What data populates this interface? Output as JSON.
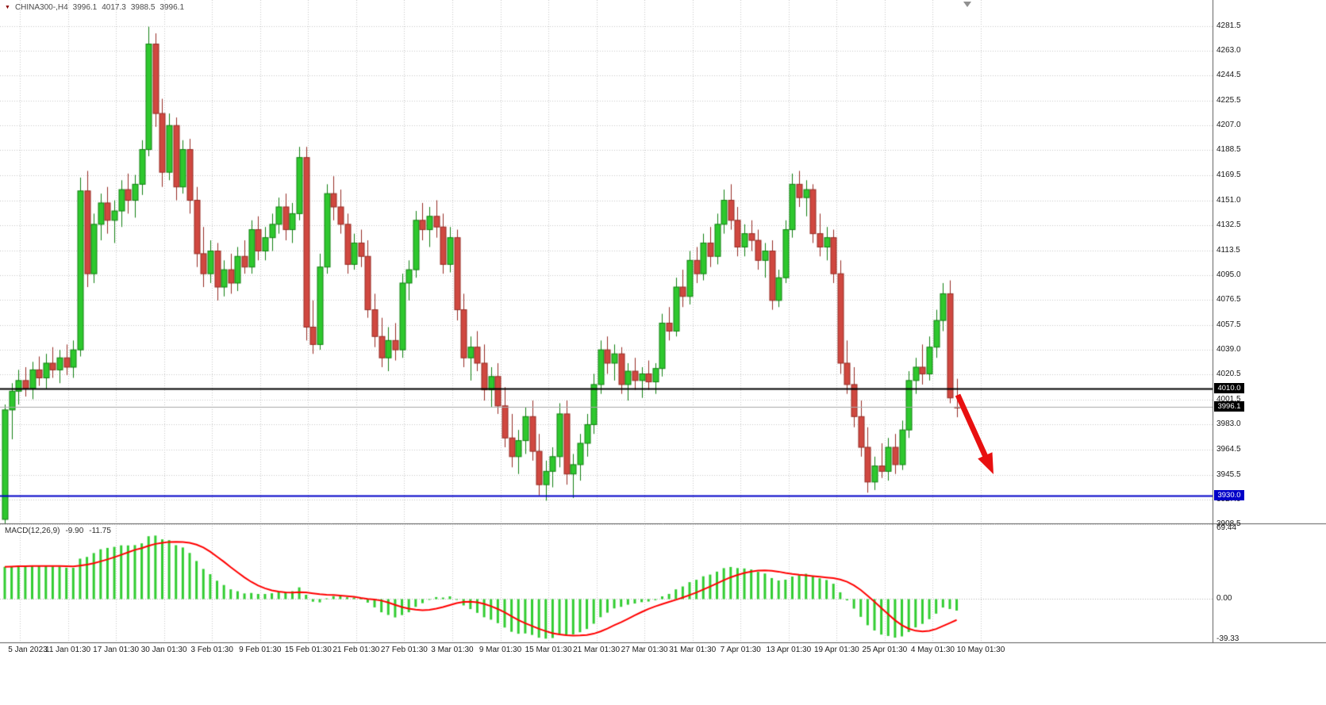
{
  "window": {
    "symbol_period": "CHINA300-,H4",
    "open": "3996.1",
    "high": "4017.3",
    "low": "3988.5",
    "close": "3996.1"
  },
  "colors": {
    "background": "#ffffff",
    "grid": "#c9c9c9",
    "bull_fill": "#2ec82e",
    "bull_border": "#118011",
    "bear_fill": "#d04840",
    "bear_border": "#962c24",
    "resistance_line": "#000000",
    "support_line": "#0000c8",
    "last_price_line": "#a8a8a8",
    "last_price_badge": "#000000",
    "macd_histogram": "#32cd32",
    "macd_signal": "#ff0000",
    "arrow": "#e81010"
  },
  "chart_data": {
    "type": "candlestick",
    "symbol": "CHINA300-",
    "timeframe": "H4",
    "grid": true,
    "y_range": {
      "top": 4301,
      "bottom": 3909
    },
    "y_ticks": [
      "4281.5",
      "4263.0",
      "4244.5",
      "4225.5",
      "4207.0",
      "4188.5",
      "4169.5",
      "4151.0",
      "4132.5",
      "4113.5",
      "4095.0",
      "4076.5",
      "4057.5",
      "4039.0",
      "4020.5",
      "4001.5",
      "3983.0",
      "3964.5",
      "3945.5",
      "3927.0",
      "3908.5"
    ],
    "x_labels": [
      "5 Jan 2023",
      "11 Jan 01:30",
      "17 Jan 01:30",
      "30 Jan 01:30",
      "3 Feb 01:30",
      "9 Feb 01:30",
      "15 Feb 01:30",
      "21 Feb 01:30",
      "27 Feb 01:30",
      "3 Mar 01:30",
      "9 Mar 01:30",
      "15 Mar 01:30",
      "21 Mar 01:30",
      "27 Mar 01:30",
      "31 Mar 01:30",
      "7 Apr 01:30",
      "13 Apr 01:30",
      "19 Apr 01:30",
      "25 Apr 01:30",
      "4 May 01:30",
      "10 May 01:30"
    ],
    "hlines": [
      {
        "price": 4010.0,
        "label": "4010.0",
        "color": "#000000",
        "width": 2
      },
      {
        "price": 3930.0,
        "label": "3930.0",
        "color": "#0000c8",
        "width": 2
      }
    ],
    "last_price": {
      "value": 3996.1,
      "label": "3996.1"
    },
    "annotations": [
      {
        "type": "arrow",
        "direction": "down-right",
        "color": "#e81010"
      }
    ],
    "ohlc": [
      [
        3912,
        3998,
        3908,
        3994
      ],
      [
        3994,
        4014,
        3972,
        4008
      ],
      [
        4008,
        4024,
        3998,
        4016
      ],
      [
        4016,
        4026,
        4004,
        4010
      ],
      [
        4010,
        4030,
        4002,
        4024
      ],
      [
        4024,
        4034,
        4012,
        4018
      ],
      [
        4018,
        4036,
        4010,
        4029
      ],
      [
        4029,
        4041,
        4018,
        4024
      ],
      [
        4024,
        4039,
        4014,
        4033
      ],
      [
        4033,
        4043,
        4020,
        4026
      ],
      [
        4026,
        4046,
        4018,
        4039
      ],
      [
        4039,
        4168,
        4034,
        4158
      ],
      [
        4158,
        4173,
        4086,
        4096
      ],
      [
        4096,
        4141,
        4089,
        4133
      ],
      [
        4133,
        4156,
        4121,
        4149
      ],
      [
        4149,
        4161,
        4126,
        4136
      ],
      [
        4136,
        4151,
        4119,
        4143
      ],
      [
        4143,
        4166,
        4131,
        4159
      ],
      [
        4159,
        4171,
        4141,
        4151
      ],
      [
        4151,
        4170,
        4138,
        4163
      ],
      [
        4163,
        4196,
        4155,
        4189
      ],
      [
        4189,
        4281,
        4184,
        4268
      ],
      [
        4268,
        4276,
        4206,
        4216
      ],
      [
        4216,
        4227,
        4161,
        4172
      ],
      [
        4172,
        4216,
        4166,
        4207
      ],
      [
        4207,
        4213,
        4151,
        4161
      ],
      [
        4161,
        4196,
        4156,
        4189
      ],
      [
        4189,
        4197,
        4141,
        4151
      ],
      [
        4151,
        4161,
        4101,
        4111
      ],
      [
        4111,
        4131,
        4086,
        4096
      ],
      [
        4096,
        4121,
        4089,
        4113
      ],
      [
        4113,
        4119,
        4076,
        4086
      ],
      [
        4086,
        4106,
        4079,
        4099
      ],
      [
        4099,
        4111,
        4081,
        4089
      ],
      [
        4089,
        4116,
        4083,
        4109
      ],
      [
        4109,
        4121,
        4096,
        4101
      ],
      [
        4101,
        4136,
        4096,
        4129
      ],
      [
        4129,
        4139,
        4106,
        4113
      ],
      [
        4113,
        4131,
        4106,
        4123
      ],
      [
        4123,
        4141,
        4113,
        4133
      ],
      [
        4133,
        4153,
        4126,
        4146
      ],
      [
        4146,
        4156,
        4121,
        4129
      ],
      [
        4129,
        4149,
        4119,
        4141
      ],
      [
        4141,
        4191,
        4136,
        4183
      ],
      [
        4183,
        4191,
        4046,
        4056
      ],
      [
        4056,
        4076,
        4036,
        4043
      ],
      [
        4043,
        4111,
        4039,
        4101
      ],
      [
        4101,
        4163,
        4096,
        4156
      ],
      [
        4156,
        4169,
        4136,
        4146
      ],
      [
        4146,
        4159,
        4126,
        4133
      ],
      [
        4133,
        4141,
        4096,
        4103
      ],
      [
        4103,
        4126,
        4099,
        4119
      ],
      [
        4119,
        4129,
        4101,
        4109
      ],
      [
        4109,
        4121,
        4063,
        4069
      ],
      [
        4069,
        4081,
        4041,
        4049
      ],
      [
        4049,
        4063,
        4026,
        4033
      ],
      [
        4033,
        4056,
        4023,
        4046
      ],
      [
        4046,
        4059,
        4031,
        4039
      ],
      [
        4039,
        4096,
        4033,
        4089
      ],
      [
        4089,
        4106,
        4076,
        4099
      ],
      [
        4099,
        4143,
        4093,
        4136
      ],
      [
        4136,
        4149,
        4121,
        4129
      ],
      [
        4129,
        4146,
        4116,
        4139
      ],
      [
        4139,
        4151,
        4123,
        4131
      ],
      [
        4131,
        4141,
        4096,
        4103
      ],
      [
        4103,
        4131,
        4097,
        4123
      ],
      [
        4123,
        4129,
        4061,
        4069
      ],
      [
        4069,
        4081,
        4026,
        4033
      ],
      [
        4033,
        4049,
        4016,
        4041
      ],
      [
        4041,
        4053,
        4023,
        4029
      ],
      [
        4029,
        4043,
        4001,
        4009
      ],
      [
        4009,
        4026,
        3996,
        4019
      ],
      [
        4019,
        4029,
        3991,
        3997
      ],
      [
        3997,
        4011,
        3966,
        3973
      ],
      [
        3973,
        3991,
        3951,
        3959
      ],
      [
        3959,
        3979,
        3946,
        3971
      ],
      [
        3971,
        3996,
        3961,
        3989
      ],
      [
        3989,
        4001,
        3956,
        3963
      ],
      [
        3963,
        3976,
        3930,
        3938
      ],
      [
        3938,
        3956,
        3926,
        3948
      ],
      [
        3948,
        3966,
        3936,
        3959
      ],
      [
        3959,
        3999,
        3951,
        3991
      ],
      [
        3991,
        4001,
        3938,
        3946
      ],
      [
        3946,
        3961,
        3928,
        3953
      ],
      [
        3953,
        3976,
        3941,
        3969
      ],
      [
        3969,
        3991,
        3959,
        3983
      ],
      [
        3983,
        4021,
        3976,
        4013
      ],
      [
        4013,
        4046,
        4006,
        4039
      ],
      [
        4039,
        4049,
        4021,
        4029
      ],
      [
        4029,
        4043,
        4016,
        4036
      ],
      [
        4036,
        4041,
        4006,
        4013
      ],
      [
        4013,
        4029,
        4001,
        4023
      ],
      [
        4023,
        4033,
        4009,
        4016
      ],
      [
        4016,
        4026,
        4003,
        4021
      ],
      [
        4021,
        4031,
        4009,
        4015
      ],
      [
        4015,
        4029,
        4006,
        4025
      ],
      [
        4025,
        4066,
        4019,
        4059
      ],
      [
        4059,
        4071,
        4046,
        4053
      ],
      [
        4053,
        4093,
        4049,
        4086
      ],
      [
        4086,
        4099,
        4071,
        4079
      ],
      [
        4079,
        4113,
        4073,
        4106
      ],
      [
        4106,
        4116,
        4089,
        4096
      ],
      [
        4096,
        4126,
        4091,
        4119
      ],
      [
        4119,
        4131,
        4101,
        4109
      ],
      [
        4109,
        4141,
        4103,
        4133
      ],
      [
        4133,
        4159,
        4126,
        4151
      ],
      [
        4151,
        4163,
        4129,
        4136
      ],
      [
        4136,
        4146,
        4109,
        4116
      ],
      [
        4116,
        4133,
        4109,
        4126
      ],
      [
        4126,
        4136,
        4113,
        4121
      ],
      [
        4121,
        4129,
        4099,
        4106
      ],
      [
        4106,
        4119,
        4093,
        4113
      ],
      [
        4113,
        4121,
        4069,
        4076
      ],
      [
        4076,
        4099,
        4071,
        4093
      ],
      [
        4093,
        4136,
        4089,
        4129
      ],
      [
        4129,
        4171,
        4123,
        4163
      ],
      [
        4163,
        4173,
        4146,
        4153
      ],
      [
        4153,
        4166,
        4139,
        4159
      ],
      [
        4159,
        4163,
        4119,
        4126
      ],
      [
        4126,
        4141,
        4109,
        4116
      ],
      [
        4116,
        4131,
        4106,
        4123
      ],
      [
        4123,
        4129,
        4089,
        4096
      ],
      [
        4096,
        4106,
        4021,
        4029
      ],
      [
        4029,
        4046,
        4006,
        4013
      ],
      [
        4013,
        4026,
        3981,
        3989
      ],
      [
        3989,
        4001,
        3959,
        3966
      ],
      [
        3966,
        3981,
        3932,
        3940
      ],
      [
        3940,
        3959,
        3934,
        3952
      ],
      [
        3952,
        3969,
        3943,
        3948
      ],
      [
        3948,
        3973,
        3941,
        3966
      ],
      [
        3966,
        3976,
        3946,
        3953
      ],
      [
        3953,
        3986,
        3949,
        3979
      ],
      [
        3979,
        4023,
        3973,
        4016
      ],
      [
        4016,
        4033,
        4006,
        4026
      ],
      [
        4026,
        4043,
        4013,
        4021
      ],
      [
        4021,
        4049,
        4016,
        4041
      ],
      [
        4041,
        4069,
        4033,
        4061
      ],
      [
        4061,
        4089,
        4053,
        4081
      ],
      [
        4081,
        4091,
        3999,
        4003
      ],
      [
        3996.1,
        4017.3,
        3988.5,
        3996.1
      ]
    ]
  },
  "macd": {
    "title": "MACD(12,26,9)",
    "main_value": "-9.90",
    "signal_value": "-11.75",
    "params": {
      "fast": 12,
      "slow": 26,
      "signal": 9
    },
    "y_ticks": [
      "69.44",
      "0.00",
      "-39.33"
    ]
  }
}
